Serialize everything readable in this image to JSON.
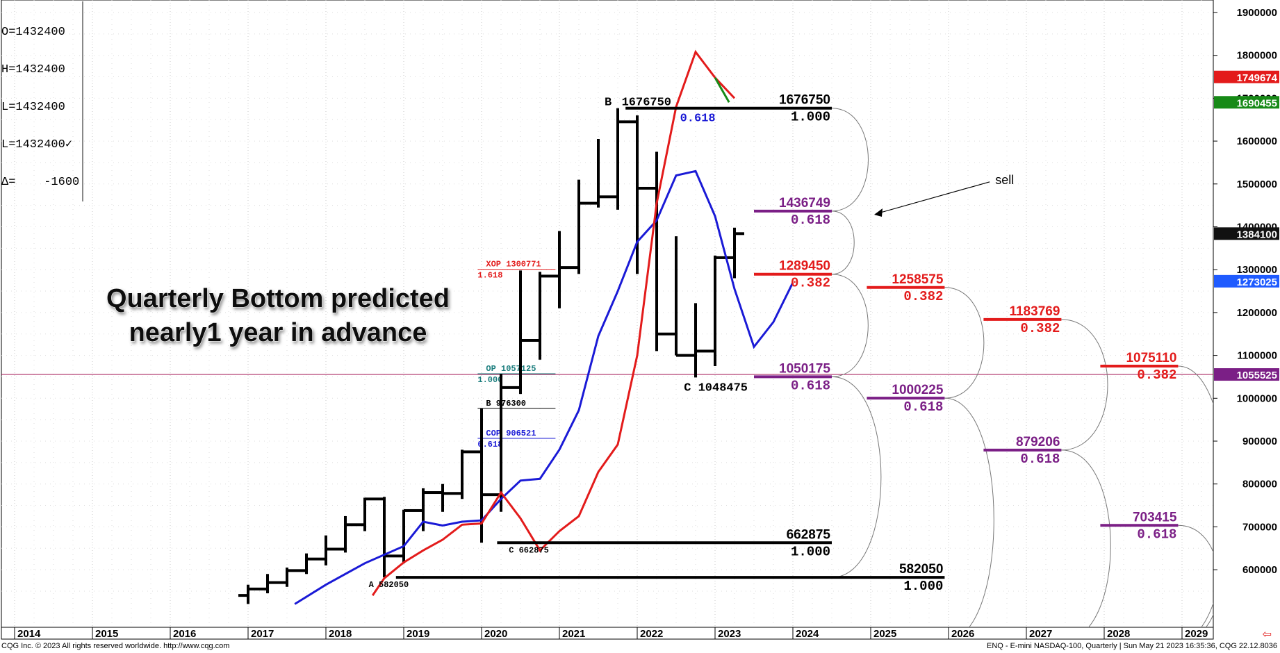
{
  "ohlc_box": {
    "open": "O=1432400",
    "high": "H=1432400",
    "low": "L=1432400",
    "last": "L=1432400✓",
    "delta": "Δ=    -1600"
  },
  "footer": {
    "left": "CQG Inc. © 2023 All rights reserved worldwide. http://www.cqg.com",
    "right": "ENQ - E-mini NASDAQ-100, Quarterly | Sun May 21 2023 16:35:36, CQG 22.12.8036"
  },
  "colors": {
    "red": "#e31b1b",
    "blue": "#1a1ad6",
    "purple": "#7b1f86",
    "green": "#178a17",
    "teal": "#1a7d7d",
    "black": "#000000",
    "crimson_line": "#a01050"
  },
  "chart_data": {
    "type": "line",
    "title": "",
    "xlabel": "",
    "ylabel": "",
    "x_range": [
      2014,
      2029.4
    ],
    "ylim": [
      545000,
      1915000
    ],
    "x_ticks": [
      "2014",
      "2015",
      "2016",
      "2017",
      "2018",
      "2019",
      "2020",
      "2021",
      "2022",
      "2023",
      "2024",
      "2025",
      "2026",
      "2027",
      "2028",
      "2029"
    ],
    "y_ticks": [
      {
        "v": 600000,
        "label": "600000"
      },
      {
        "v": 700000,
        "label": "700000"
      },
      {
        "v": 800000,
        "label": "800000"
      },
      {
        "v": 900000,
        "label": "900000"
      },
      {
        "v": 1000000,
        "label": "1000000"
      },
      {
        "v": 1100000,
        "label": "1100000"
      },
      {
        "v": 1200000,
        "label": "1200000"
      },
      {
        "v": 1300000,
        "label": "1300000"
      },
      {
        "v": 1400000,
        "label": "1400000"
      },
      {
        "v": 1500000,
        "label": "1500000"
      },
      {
        "v": 1600000,
        "label": "1600000"
      },
      {
        "v": 1700000,
        "label": "1700000"
      },
      {
        "v": 1800000,
        "label": "1800000"
      },
      {
        "v": 1900000,
        "label": "1900000"
      }
    ],
    "price_tags": [
      {
        "v": 1749674,
        "label": "1749674",
        "color": "#e31b1b"
      },
      {
        "v": 1690455,
        "label": "1690455",
        "color": "#178a17"
      },
      {
        "v": 1384100,
        "label": "1384100",
        "color": "#111111"
      },
      {
        "v": 1273025,
        "label": "1273025",
        "color": "#1f5bff"
      },
      {
        "v": 1055525,
        "label": "1055525",
        "color": "#7b1f86"
      }
    ],
    "horizontal_line": {
      "v": 1055525,
      "color": "#a01050"
    },
    "bars": [
      {
        "x": 2017.0,
        "o": 540000,
        "h": 565000,
        "l": 520000,
        "c": 555000
      },
      {
        "x": 2017.25,
        "o": 555000,
        "h": 590000,
        "l": 545000,
        "c": 570000
      },
      {
        "x": 2017.5,
        "o": 570000,
        "h": 605000,
        "l": 560000,
        "c": 598000
      },
      {
        "x": 2017.75,
        "o": 598000,
        "h": 638000,
        "l": 590000,
        "c": 625000
      },
      {
        "x": 2018.0,
        "o": 625000,
        "h": 680000,
        "l": 610000,
        "c": 648000
      },
      {
        "x": 2018.25,
        "o": 648000,
        "h": 725000,
        "l": 640000,
        "c": 705000
      },
      {
        "x": 2018.5,
        "o": 705000,
        "h": 768000,
        "l": 690000,
        "c": 765000
      },
      {
        "x": 2018.75,
        "o": 765000,
        "h": 770000,
        "l": 582050,
        "c": 632000
      },
      {
        "x": 2019.0,
        "o": 632000,
        "h": 740000,
        "l": 615000,
        "c": 738000
      },
      {
        "x": 2019.25,
        "o": 738000,
        "h": 790000,
        "l": 690000,
        "c": 780000
      },
      {
        "x": 2019.5,
        "o": 780000,
        "h": 800000,
        "l": 735000,
        "c": 778000
      },
      {
        "x": 2019.75,
        "o": 778000,
        "h": 880000,
        "l": 765000,
        "c": 875000
      },
      {
        "x": 2020.0,
        "o": 875000,
        "h": 976300,
        "l": 662875,
        "c": 775000
      },
      {
        "x": 2020.25,
        "o": 775000,
        "h": 1057125,
        "l": 735000,
        "c": 1025000
      },
      {
        "x": 2020.5,
        "o": 1025000,
        "h": 1298000,
        "l": 1010000,
        "c": 1135000
      },
      {
        "x": 2020.75,
        "o": 1135000,
        "h": 1295000,
        "l": 1090000,
        "c": 1285000
      },
      {
        "x": 2021.0,
        "o": 1285000,
        "h": 1390000,
        "l": 1210000,
        "c": 1305000
      },
      {
        "x": 2021.25,
        "o": 1305000,
        "h": 1510000,
        "l": 1290000,
        "c": 1455000
      },
      {
        "x": 2021.5,
        "o": 1455000,
        "h": 1605000,
        "l": 1445000,
        "c": 1470000
      },
      {
        "x": 2021.75,
        "o": 1470000,
        "h": 1676750,
        "l": 1440000,
        "c": 1645000
      },
      {
        "x": 2022.0,
        "o": 1645000,
        "h": 1660000,
        "l": 1290000,
        "c": 1490000
      },
      {
        "x": 2022.25,
        "o": 1490000,
        "h": 1575000,
        "l": 1110000,
        "c": 1150000
      },
      {
        "x": 2022.5,
        "o": 1150000,
        "h": 1378000,
        "l": 1100000,
        "c": 1100000
      },
      {
        "x": 2022.75,
        "o": 1100000,
        "h": 1222000,
        "l": 1048475,
        "c": 1110000
      },
      {
        "x": 2023.0,
        "o": 1110000,
        "h": 1333000,
        "l": 1075000,
        "c": 1328000
      },
      {
        "x": 2023.25,
        "o": 1328000,
        "h": 1398000,
        "l": 1280000,
        "c": 1384100
      }
    ],
    "series": [
      {
        "color": "#1a1ad6",
        "points": [
          [
            2017.6,
            520000
          ],
          [
            2018.0,
            565000
          ],
          [
            2018.5,
            615000
          ],
          [
            2019.0,
            655000
          ],
          [
            2019.25,
            712000
          ],
          [
            2019.5,
            703000
          ],
          [
            2019.75,
            712000
          ],
          [
            2020.0,
            715000
          ],
          [
            2020.25,
            765000
          ],
          [
            2020.5,
            808000
          ],
          [
            2020.75,
            812000
          ],
          [
            2021.0,
            880000
          ],
          [
            2021.25,
            972000
          ],
          [
            2021.5,
            1145000
          ],
          [
            2021.75,
            1250000
          ],
          [
            2022.0,
            1365000
          ],
          [
            2022.25,
            1415000
          ],
          [
            2022.5,
            1520000
          ],
          [
            2022.75,
            1530000
          ],
          [
            2023.0,
            1425000
          ],
          [
            2023.25,
            1255000
          ],
          [
            2023.5,
            1120000
          ],
          [
            2023.75,
            1178000
          ],
          [
            2024.0,
            1270000
          ]
        ]
      },
      {
        "color": "#e31b1b",
        "points": [
          [
            2018.6,
            540000
          ],
          [
            2018.75,
            580000
          ],
          [
            2019.0,
            617000
          ],
          [
            2019.25,
            645000
          ],
          [
            2019.5,
            670000
          ],
          [
            2019.75,
            705000
          ],
          [
            2020.0,
            708000
          ],
          [
            2020.25,
            780000
          ],
          [
            2020.5,
            720000
          ],
          [
            2020.75,
            645000
          ],
          [
            2021.0,
            690000
          ],
          [
            2021.25,
            725000
          ],
          [
            2021.5,
            828000
          ],
          [
            2021.75,
            892000
          ],
          [
            2022.0,
            1100000
          ],
          [
            2022.25,
            1455000
          ],
          [
            2022.5,
            1680000
          ],
          [
            2022.75,
            1808000
          ],
          [
            2023.0,
            1748000
          ],
          [
            2023.25,
            1700000
          ]
        ]
      },
      {
        "color": "#178a17",
        "points": [
          [
            2023.0,
            1748000
          ],
          [
            2023.18,
            1690455
          ]
        ]
      }
    ],
    "levels": [
      {
        "v": 1676750,
        "x1": 2021.85,
        "x2": 2024.5,
        "color": "#000000",
        "w": 4,
        "top": "1676750",
        "bottom": "1.000"
      },
      {
        "v": 1436749,
        "x1": 2023.5,
        "x2": 2024.5,
        "color": "#7b1f86",
        "w": 4,
        "top": "1436749",
        "bottom": "0.618"
      },
      {
        "v": 1289450,
        "x1": 2023.5,
        "x2": 2024.5,
        "color": "#e31b1b",
        "w": 4,
        "top": "1289450",
        "bottom": "0.382"
      },
      {
        "v": 1050175,
        "x1": 2023.5,
        "x2": 2024.5,
        "color": "#7b1f86",
        "w": 4,
        "top": "1050175",
        "bottom": "0.618"
      },
      {
        "v": 662875,
        "x1": 2020.2,
        "x2": 2024.5,
        "color": "#000000",
        "w": 4,
        "top": "662875",
        "bottom": "1.000"
      },
      {
        "v": 1258575,
        "x1": 2024.95,
        "x2": 2025.95,
        "color": "#e31b1b",
        "w": 4,
        "top": "1258575",
        "bottom": "0.382"
      },
      {
        "v": 1000225,
        "x1": 2024.95,
        "x2": 2025.95,
        "color": "#7b1f86",
        "w": 4,
        "top": "1000225",
        "bottom": "0.618"
      },
      {
        "v": 582050,
        "x1": 2018.9,
        "x2": 2025.95,
        "color": "#000000",
        "w": 4,
        "top": "582050",
        "bottom": "1.000"
      },
      {
        "v": 1183769,
        "x1": 2026.45,
        "x2": 2027.45,
        "color": "#e31b1b",
        "w": 4,
        "top": "1183769",
        "bottom": "0.382"
      },
      {
        "v": 879206,
        "x1": 2026.45,
        "x2": 2027.45,
        "color": "#7b1f86",
        "w": 4,
        "top": "879206",
        "bottom": "0.618"
      },
      {
        "v": 1075110,
        "x1": 2027.95,
        "x2": 2028.95,
        "color": "#e31b1b",
        "w": 4,
        "top": "1075110",
        "bottom": "0.382"
      },
      {
        "v": 703415,
        "x1": 2027.95,
        "x2": 2028.95,
        "color": "#7b1f86",
        "w": 4,
        "top": "703415",
        "bottom": "0.618"
      }
    ],
    "thin_levels": [
      {
        "v": 1300771,
        "x1": 2019.95,
        "x2": 2020.95,
        "color": "#e31b1b",
        "top": "XOP  1300771",
        "bottom": "1.618"
      },
      {
        "v": 1057125,
        "x1": 2019.95,
        "x2": 2020.95,
        "color": "#1a7d7d",
        "top": "OP  1057125",
        "bottom": "1.000"
      },
      {
        "v": 976300,
        "x1": 2019.95,
        "x2": 2020.95,
        "color": "#000000",
        "top": "B  976300",
        "bottom": ""
      },
      {
        "v": 906521,
        "x1": 2019.95,
        "x2": 2020.95,
        "color": "#1a1ad6",
        "top": "COP  906521",
        "bottom": "0.618"
      }
    ],
    "point_labels": [
      {
        "x": 2021.58,
        "v": 1676750,
        "text": "B",
        "color": "#000000",
        "size": 17
      },
      {
        "x": 2021.8,
        "v": 1676750,
        "text": "1676750",
        "color": "#000000",
        "size": 17
      },
      {
        "x": 2022.55,
        "v": 1676750,
        "text": "0.618",
        "color": "#1a1ad6",
        "size": 17,
        "below": true
      },
      {
        "x": 2022.6,
        "v": 1048475,
        "text": "C  1048475",
        "color": "#000000",
        "size": 17,
        "below": true
      },
      {
        "x": 2020.35,
        "v": 662875,
        "text": "C  662875",
        "color": "#000000",
        "size": 12,
        "below": true
      },
      {
        "x": 2018.55,
        "v": 582050,
        "text": "A  582050",
        "color": "#000000",
        "size": 12,
        "below": true
      }
    ],
    "arcs": [
      {
        "x": 2024.5,
        "v1": 1676750,
        "v2": 1436749,
        "side": "right"
      },
      {
        "x": 2024.5,
        "v1": 1436749,
        "v2": 1289450,
        "side": "right"
      },
      {
        "x": 2024.5,
        "v1": 1289450,
        "v2": 1050175,
        "side": "right"
      },
      {
        "x": 2024.5,
        "v1": 1050175,
        "v2": 582050,
        "side": "right"
      },
      {
        "x": 2025.95,
        "v1": 1258575,
        "v2": 1000225,
        "side": "right"
      },
      {
        "x": 2025.95,
        "v1": 1000225,
        "v2": -1,
        "side": "right"
      },
      {
        "x": 2027.45,
        "v1": 1183769,
        "v2": 879206,
        "side": "right"
      },
      {
        "x": 2027.45,
        "v1": 879206,
        "v2": -1,
        "side": "right"
      },
      {
        "x": 2028.95,
        "v1": 1075110,
        "v2": -1,
        "side": "right"
      },
      {
        "x": 2028.95,
        "v1": 703415,
        "v2": -1,
        "side": "right"
      }
    ],
    "annotations": [
      {
        "text": "sell",
        "x": 2026.6,
        "v": 1500000,
        "color": "#000000",
        "size": 18
      }
    ],
    "big_text": [
      "Quarterly Bottom predicted",
      "nearly1 year in advance"
    ]
  }
}
